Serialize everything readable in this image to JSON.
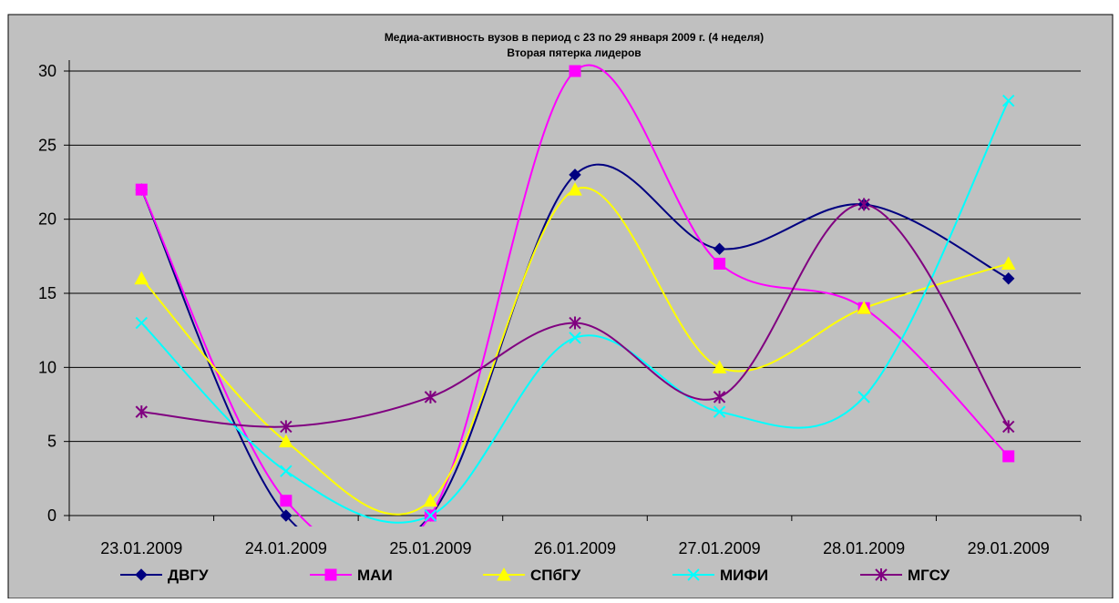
{
  "chart_data": {
    "type": "line",
    "title": "Медиа-активность вузов в период с 23 по 29 января 2009 г. (4 неделя)",
    "subtitle": "Вторая пятерка лидеров",
    "categories": [
      "23.01.2009",
      "24.01.2009",
      "25.01.2009",
      "26.01.2009",
      "27.01.2009",
      "28.01.2009",
      "29.01.2009"
    ],
    "y_ticks": [
      "0",
      "5",
      "10",
      "15",
      "20",
      "25",
      "30"
    ],
    "ylim": [
      0,
      30
    ],
    "grid": true,
    "smooth": true,
    "legend_position": "bottom",
    "background_color": "#c0c0c0",
    "series": [
      {
        "name": "ДВГУ",
        "values": [
          22,
          0,
          0,
          23,
          18,
          21,
          16
        ],
        "color": "#000080",
        "marker": "diamond"
      },
      {
        "name": "МАИ",
        "values": [
          22,
          1,
          0,
          30,
          17,
          14,
          4
        ],
        "color": "#ff00ff",
        "marker": "square"
      },
      {
        "name": "СПбГУ",
        "values": [
          16,
          5,
          1,
          22,
          10,
          14,
          17
        ],
        "color": "#ffff00",
        "marker": "triangle"
      },
      {
        "name": "МИФИ",
        "values": [
          13,
          3,
          0,
          12,
          7,
          8,
          28
        ],
        "color": "#00ffff",
        "marker": "x"
      },
      {
        "name": "МГСУ",
        "values": [
          7,
          6,
          8,
          13,
          8,
          21,
          6
        ],
        "color": "#800080",
        "marker": "asterisk"
      }
    ]
  }
}
